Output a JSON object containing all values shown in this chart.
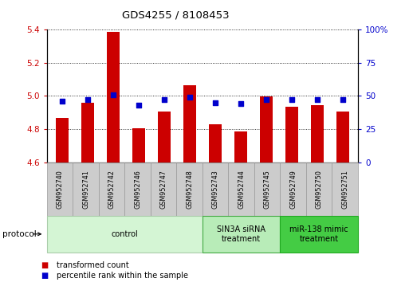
{
  "title": "GDS4255 / 8108453",
  "samples": [
    "GSM952740",
    "GSM952741",
    "GSM952742",
    "GSM952746",
    "GSM952747",
    "GSM952748",
    "GSM952743",
    "GSM952744",
    "GSM952745",
    "GSM952749",
    "GSM952750",
    "GSM952751"
  ],
  "transformed_count": [
    4.865,
    4.96,
    5.385,
    4.805,
    4.905,
    5.065,
    4.83,
    4.785,
    4.995,
    4.935,
    4.945,
    4.905
  ],
  "percentile_rank": [
    46,
    47,
    51,
    43,
    47,
    49,
    45,
    44,
    47,
    47,
    47,
    47
  ],
  "ylim_left": [
    4.6,
    5.4
  ],
  "ylim_right": [
    0,
    100
  ],
  "yticks_left": [
    4.6,
    4.8,
    5.0,
    5.2,
    5.4
  ],
  "yticks_right": [
    0,
    25,
    50,
    75,
    100
  ],
  "bar_color": "#cc0000",
  "dot_color": "#0000cc",
  "bar_bottom": 4.6,
  "groups": [
    {
      "label": "control",
      "start": 0,
      "end": 5,
      "color": "#d4f5d4",
      "edge_color": "#aaccaa"
    },
    {
      "label": "SIN3A siRNA\ntreatment",
      "start": 6,
      "end": 8,
      "color": "#b8ecb8",
      "edge_color": "#44aa44"
    },
    {
      "label": "miR-138 mimic\ntreatment",
      "start": 9,
      "end": 11,
      "color": "#44cc44",
      "edge_color": "#22aa22"
    }
  ],
  "legend_items": [
    {
      "label": "transformed count",
      "color": "#cc0000"
    },
    {
      "label": "percentile rank within the sample",
      "color": "#0000cc"
    }
  ],
  "protocol_label": "protocol",
  "grid_color": "#000000",
  "background_color": "#ffffff",
  "tick_label_color_left": "#cc0000",
  "tick_label_color_right": "#0000cc",
  "sample_box_color": "#cccccc",
  "sample_box_edge": "#999999"
}
